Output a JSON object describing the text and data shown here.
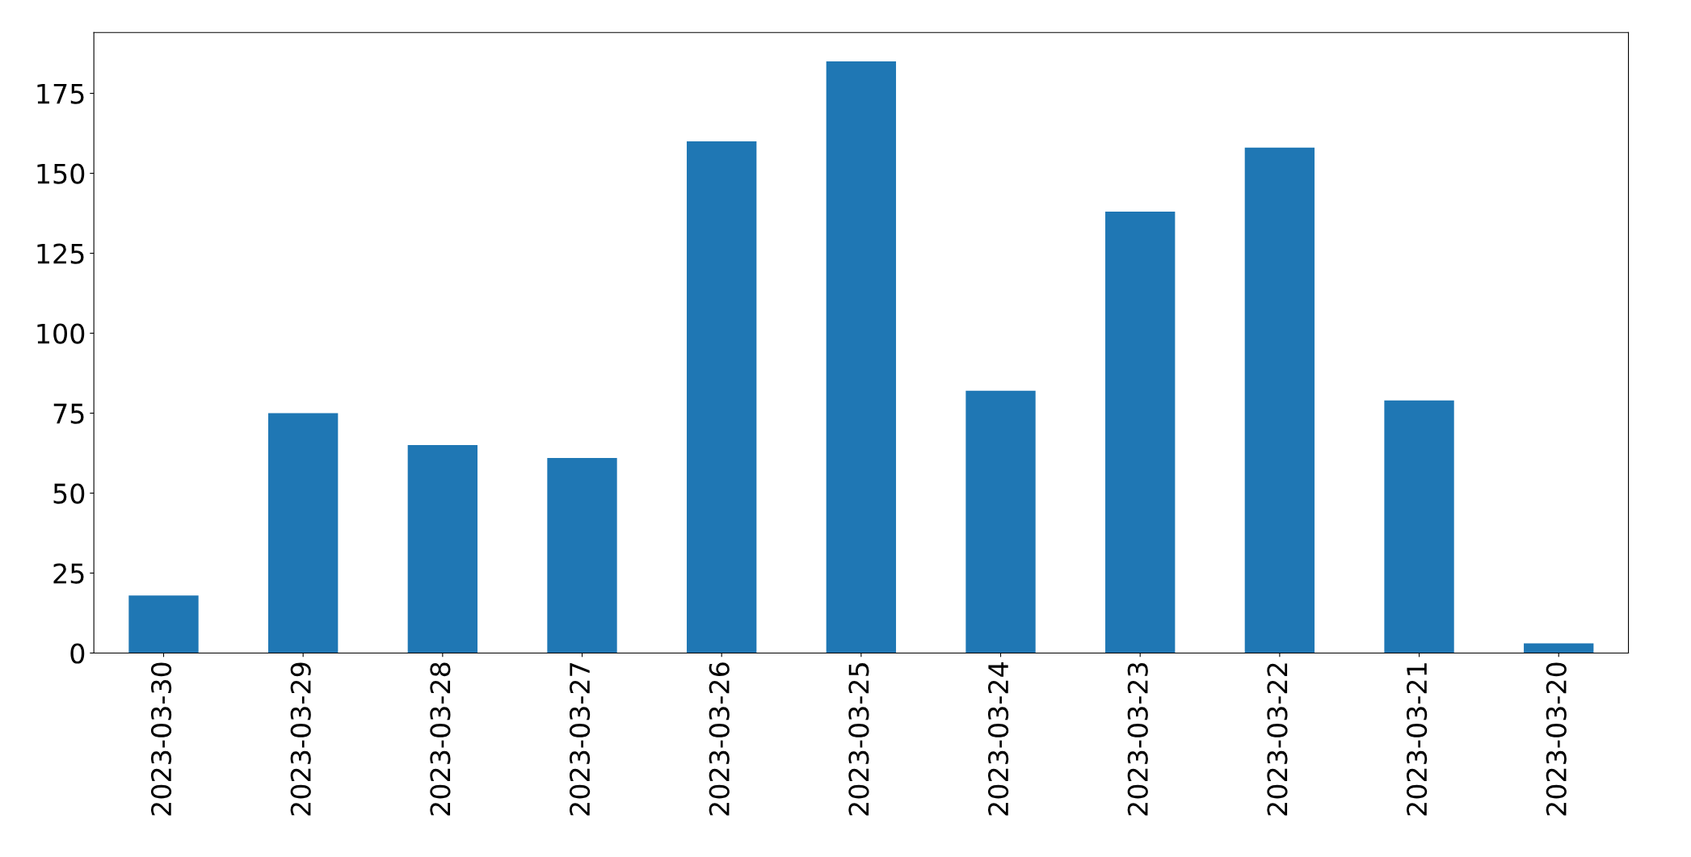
{
  "chart_data": {
    "type": "bar",
    "categories": [
      "2023-03-30",
      "2023-03-29",
      "2023-03-28",
      "2023-03-27",
      "2023-03-26",
      "2023-03-25",
      "2023-03-24",
      "2023-03-23",
      "2023-03-22",
      "2023-03-21",
      "2023-03-20"
    ],
    "values": [
      18,
      75,
      65,
      61,
      160,
      185,
      82,
      138,
      158,
      79,
      3
    ],
    "color": "#1f77b4",
    "ylim": [
      0,
      194
    ],
    "yticks": [
      0,
      25,
      50,
      75,
      100,
      125,
      150,
      175
    ],
    "grid": false,
    "legend": false
  }
}
